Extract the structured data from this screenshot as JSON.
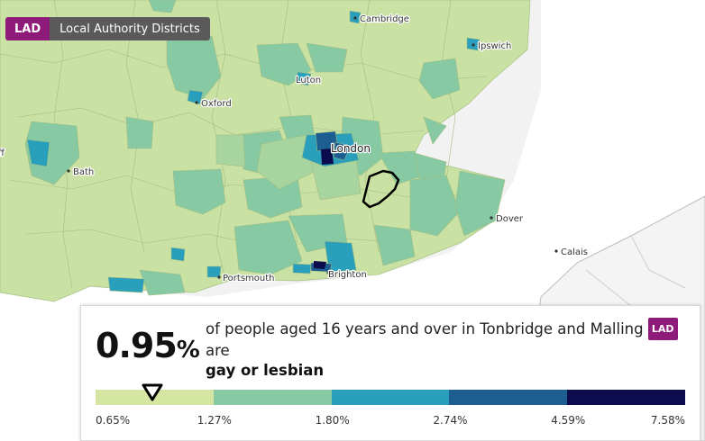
{
  "geography": {
    "badge": "LAD",
    "label": "Local Authority Districts"
  },
  "places": {
    "cambridge": "Cambridge",
    "ipswich": "Ipswich",
    "luton": "Luton",
    "oxford": "Oxford",
    "london": "London",
    "bath": "Bath",
    "dover": "Dover",
    "calais": "Calais",
    "portsmouth": "Portsmouth",
    "brighton": "Brighton",
    "bristol_partial": "ff"
  },
  "info": {
    "value": "0.95",
    "unit": "%",
    "line1": "of people aged 16 years and over in Tonbridge and Malling",
    "badge": "LAD",
    "line2": "are",
    "category": "gay or lesbian"
  },
  "legend": {
    "breaks": [
      "0.65%",
      "1.27%",
      "1.80%",
      "2.74%",
      "4.59%",
      "7.58%"
    ],
    "colors": [
      "#d5e6a3",
      "#86c9a3",
      "#2a9fbb",
      "#1d5e91",
      "#0c0b4d"
    ],
    "marker_value": 0.95
  },
  "colors": {
    "land": "#c9e1a2",
    "sea": "#ffffff",
    "outline": "#000000",
    "accent": "#8e1a7a"
  }
}
